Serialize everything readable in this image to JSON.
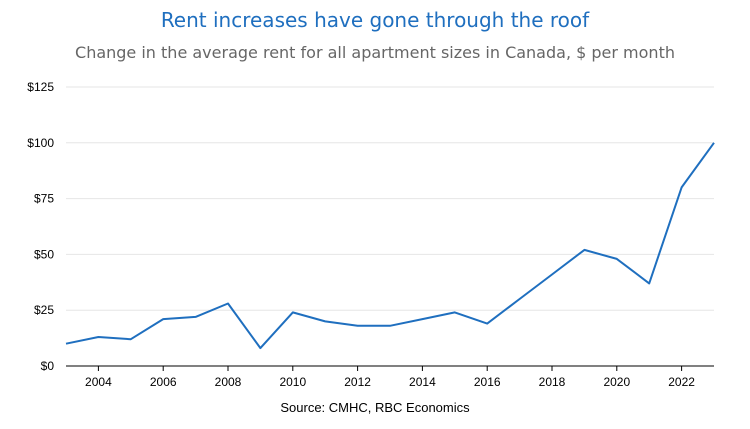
{
  "chart_data": {
    "type": "line",
    "title": "Rent increases have gone through the roof",
    "subtitle": "Change in the average rent for all apartment sizes in Canada, $ per month",
    "source": "Source: CMHC, RBC Economics",
    "xlabel": "",
    "ylabel": "",
    "xlim": [
      2003,
      2023
    ],
    "ylim": [
      0,
      125
    ],
    "grid": true,
    "x_ticks": [
      2004,
      2006,
      2008,
      2010,
      2012,
      2014,
      2016,
      2018,
      2020,
      2022
    ],
    "y_ticks": [
      {
        "value": 0,
        "label": "$0"
      },
      {
        "value": 25,
        "label": "$25"
      },
      {
        "value": 50,
        "label": "$50"
      },
      {
        "value": 75,
        "label": "$75"
      },
      {
        "value": 100,
        "label": "$100"
      },
      {
        "value": 125,
        "label": "$125"
      }
    ],
    "series": [
      {
        "name": "Change in average rent",
        "color": "#1f6fbf",
        "x": [
          2003,
          2004,
          2005,
          2006,
          2007,
          2008,
          2009,
          2010,
          2011,
          2012,
          2013,
          2014,
          2015,
          2016,
          2017,
          2018,
          2019,
          2020,
          2021,
          2022,
          2023
        ],
        "values": [
          10,
          13,
          12,
          21,
          22,
          28,
          8,
          24,
          20,
          18,
          18,
          21,
          24,
          19,
          30,
          41,
          52,
          48,
          37,
          80,
          100
        ]
      }
    ]
  }
}
